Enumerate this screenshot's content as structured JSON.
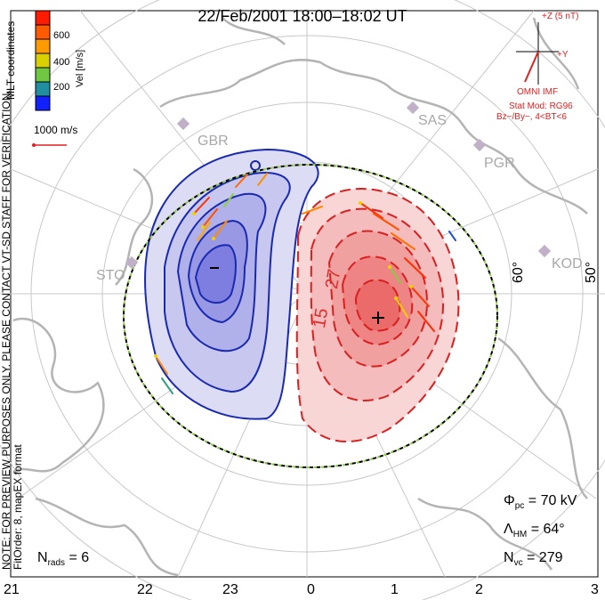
{
  "title": "22/Feb/2001 18:00–18:02 UT",
  "x_axis_mlt_labels": [
    "21",
    "22",
    "23",
    "0",
    "1",
    "2",
    "3"
  ],
  "latitude_labels": [
    "60°",
    "50°"
  ],
  "color_scale": {
    "title": "Vel [m/s]",
    "coordinates_label": "MLT coordinates",
    "ticks": [
      "600",
      "400",
      "200"
    ],
    "colors": [
      "#ff2a00",
      "#ff8a00",
      "#f0d000",
      "#80d040",
      "#30a080",
      "#2050d0",
      "#1010ff"
    ]
  },
  "velocity_scale_label": "1000 m/s",
  "imf": {
    "z_label": "+Z (5 nT)",
    "y_label": "+Y",
    "source_label": "OMNI IMF",
    "model_line1": "Stat Mod: RG96",
    "model_line2": "Bz−/By−, 4<BT<6"
  },
  "stations": [
    "GBR",
    "SAS",
    "PGR",
    "STO",
    "KOD"
  ],
  "contour_labels": [
    "27",
    "15"
  ],
  "extrema_marks": [
    "−",
    "+"
  ],
  "notes": {
    "preview": "NOTE: FOR PREVIEW PURPOSES ONLY. PLEASE CONTACT VT-SD STAFF FOR VERIFICATION.",
    "fit": "FitOrder: 8, mapEX format"
  },
  "stats": {
    "phi_pc": "Φ",
    "phi_sub": "pc",
    "phi_val": " = 70 kV",
    "lambda": "Λ",
    "lambda_sub": "HM",
    "lambda_val": " = 64°",
    "nvc": "N",
    "nvc_sub": "vc",
    "nvc_val": " = 279",
    "nrads": "N",
    "nrads_sub": "rads",
    "nrads_val": " = 6"
  }
}
